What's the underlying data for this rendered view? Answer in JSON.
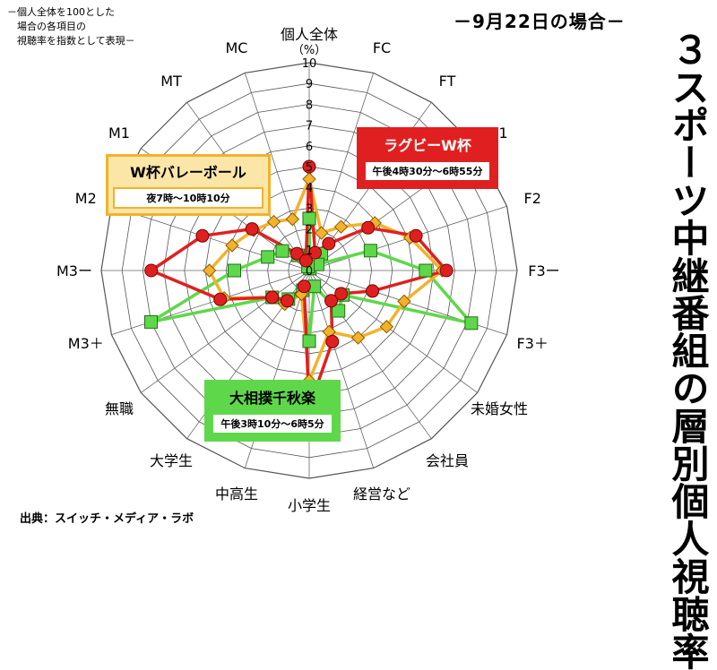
{
  "header": {
    "note": "－個人全体を100とした\n　場合の各項目の\n　視聴率を指数として表現－",
    "date_label": "－9月22日の場合－",
    "title": "３スポーツ中継番組の層別個人視聴率",
    "source": "出典：スイッチ・メディア・ラボ"
  },
  "legend": {
    "volley": {
      "title": "W杯バレーボール",
      "time": "夜7時～10時10分"
    },
    "rugby": {
      "title": "ラグビーW杯",
      "time": "午後4時30分～6時55分"
    },
    "sumo": {
      "title": "大相撲千秋楽",
      "time": "午後3時10分～6時5分"
    }
  },
  "chart_data": {
    "type": "radar",
    "axis_unit": "（%）",
    "rlim": [
      0,
      10
    ],
    "ticks": [
      0,
      1,
      2,
      3,
      4,
      5,
      6,
      7,
      8,
      9,
      10
    ],
    "categories": [
      "個人全体",
      "FC",
      "FT",
      "F1",
      "F2",
      "F3ー",
      "F3＋",
      "未婚女性",
      "会社員",
      "経営など",
      "小学生",
      "中高生",
      "大学生",
      "無職",
      "M3＋",
      "M3ー",
      "M2",
      "M1",
      "MT",
      "MC"
    ],
    "series": [
      {
        "name": "ラグビーW杯",
        "color": "#e02020",
        "marker": "circle",
        "values": [
          5.0,
          0.9,
          1.6,
          3.5,
          5.4,
          6.6,
          3.2,
          1.9,
          1.8,
          3.6,
          6.6,
          0.8,
          1.8,
          2.2,
          4.5,
          7.6,
          5.4,
          3.4,
          1.0,
          0.5
        ]
      },
      {
        "name": "W杯バレーボール",
        "color": "#f2b22b",
        "marker": "diamond",
        "values": [
          4.4,
          1.9,
          2.6,
          3.9,
          5.1,
          6.4,
          4.8,
          4.6,
          4.0,
          3.1,
          5.3,
          1.2,
          2.0,
          2.2,
          4.3,
          4.8,
          3.9,
          3.3,
          2.9,
          2.6
        ]
      },
      {
        "name": "大相撲千秋楽",
        "color": "#5ed84a",
        "marker": "square",
        "values": [
          2.5,
          0.1,
          1.0,
          0.5,
          3.1,
          5.6,
          8.2,
          2.0,
          2.4,
          0.8,
          3.4,
          1.0,
          1.7,
          2.2,
          8.0,
          3.6,
          2.1,
          1.6,
          0.9,
          0.2
        ]
      }
    ]
  }
}
